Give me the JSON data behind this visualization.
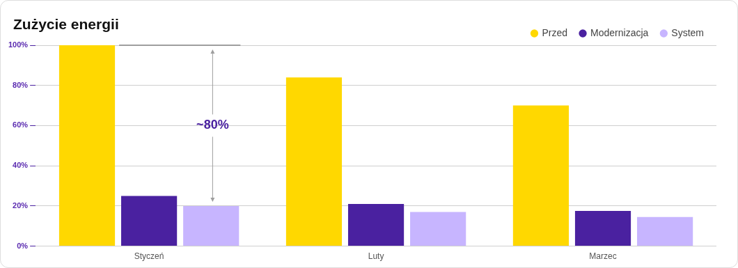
{
  "chart_data": {
    "type": "bar",
    "title": "Zużycie energii",
    "categories": [
      "Styczeń",
      "Luty",
      "Marzec"
    ],
    "series": [
      {
        "name": "Przed",
        "color": "#ffd800",
        "values": [
          100,
          84,
          70
        ]
      },
      {
        "name": "Modernizacja",
        "color": "#4a21a0",
        "values": [
          25,
          21,
          17.5
        ]
      },
      {
        "name": "System",
        "color": "#c7b5ff",
        "values": [
          20,
          17,
          14.5
        ]
      }
    ],
    "ylim": [
      0,
      100
    ],
    "yticks": [
      {
        "value": 0,
        "label": "0%"
      },
      {
        "value": 20,
        "label": "20%"
      },
      {
        "value": 40,
        "label": "40%"
      },
      {
        "value": 60,
        "label": "60%"
      },
      {
        "value": 80,
        "label": "80%"
      },
      {
        "value": 100,
        "label": "100%"
      }
    ],
    "grid": "y",
    "legend": "top right",
    "annotations": [
      "~80%"
    ]
  }
}
